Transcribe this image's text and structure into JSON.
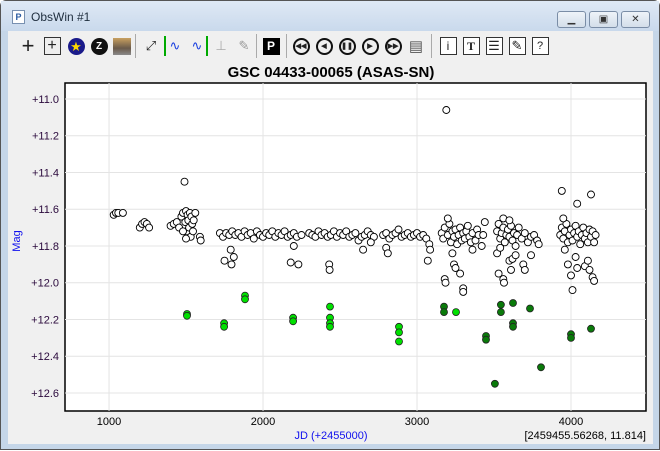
{
  "window": {
    "title": "ObsWin #1",
    "controls": [
      "minimize",
      "maximize",
      "close"
    ]
  },
  "toolbar": {
    "items": [
      "crosshair-icon",
      "box-crosshair-icon",
      "star-icon",
      "zoom-z-icon",
      "image-icon",
      "expand-icon",
      "period-left-icon",
      "period-right-icon",
      "period-gray-icon",
      "edit-gray-icon",
      "P",
      "rewind-icon",
      "prev-icon",
      "pause-icon",
      "play-icon",
      "fast-forward-icon",
      "notepad-icon",
      "i",
      "T",
      "list-icon",
      "pencil-icon",
      "?"
    ]
  },
  "status": {
    "cursor_readout": "[2459455.56268, 11.814]"
  },
  "chart_data": {
    "type": "scatter",
    "title": "GSC 04433-00065 (ASAS-SN)",
    "xlabel": "JD (+2455000)",
    "ylabel": "Mag",
    "xlim": [
      714,
      4487
    ],
    "ylim": [
      10.913,
      12.698
    ],
    "y_inverted": true,
    "grid": true,
    "xticks": [
      "1000",
      "2000",
      "3000",
      "4000"
    ],
    "yticks": [
      "+11.0",
      "+11.2",
      "+11.4",
      "+11.6",
      "+11.8",
      "+12.0",
      "+12.2",
      "+12.4",
      "+12.6"
    ],
    "series": [
      {
        "marker": "open-circle",
        "color": "#000000",
        "points": [
          [
            1030,
            11.63
          ],
          [
            1045,
            11.62
          ],
          [
            1060,
            11.62
          ],
          [
            1090,
            11.62
          ],
          [
            1200,
            11.7
          ],
          [
            1215,
            11.68
          ],
          [
            1230,
            11.67
          ],
          [
            1245,
            11.68
          ],
          [
            1260,
            11.7
          ],
          [
            1400,
            11.69
          ],
          [
            1420,
            11.68
          ],
          [
            1440,
            11.67
          ],
          [
            1455,
            11.7
          ],
          [
            1470,
            11.64
          ],
          [
            1480,
            11.62
          ],
          [
            1490,
            11.45
          ],
          [
            1495,
            11.67
          ],
          [
            1500,
            11.61
          ],
          [
            1505,
            11.72
          ],
          [
            1510,
            11.63
          ],
          [
            1515,
            11.66
          ],
          [
            1520,
            11.7
          ],
          [
            1525,
            11.62
          ],
          [
            1530,
            11.75
          ],
          [
            1535,
            11.64
          ],
          [
            1540,
            11.68
          ],
          [
            1545,
            11.72
          ],
          [
            1550,
            11.66
          ],
          [
            1560,
            11.62
          ],
          [
            1480,
            11.72
          ],
          [
            1500,
            11.76
          ],
          [
            1590,
            11.75
          ],
          [
            1595,
            11.77
          ],
          [
            1720,
            11.73
          ],
          [
            1740,
            11.75
          ],
          [
            1750,
            11.88
          ],
          [
            1760,
            11.73
          ],
          [
            1780,
            11.74
          ],
          [
            1790,
            11.82
          ],
          [
            1795,
            11.9
          ],
          [
            1800,
            11.72
          ],
          [
            1810,
            11.86
          ],
          [
            1820,
            11.74
          ],
          [
            1840,
            11.73
          ],
          [
            1860,
            11.75
          ],
          [
            1880,
            11.72
          ],
          [
            1900,
            11.74
          ],
          [
            1920,
            11.73
          ],
          [
            1940,
            11.76
          ],
          [
            1960,
            11.72
          ],
          [
            1980,
            11.74
          ],
          [
            2000,
            11.75
          ],
          [
            2020,
            11.73
          ],
          [
            2040,
            11.74
          ],
          [
            2060,
            11.72
          ],
          [
            2080,
            11.75
          ],
          [
            2100,
            11.73
          ],
          [
            2120,
            11.74
          ],
          [
            2140,
            11.72
          ],
          [
            2160,
            11.75
          ],
          [
            2180,
            11.74
          ],
          [
            2200,
            11.73
          ],
          [
            2220,
            11.75
          ],
          [
            2250,
            11.74
          ],
          [
            2180,
            11.89
          ],
          [
            2230,
            11.9
          ],
          [
            2200,
            11.8
          ],
          [
            2300,
            11.73
          ],
          [
            2320,
            11.74
          ],
          [
            2340,
            11.75
          ],
          [
            2360,
            11.72
          ],
          [
            2380,
            11.74
          ],
          [
            2400,
            11.73
          ],
          [
            2420,
            11.75
          ],
          [
            2430,
            11.9
          ],
          [
            2432,
            11.93
          ],
          [
            2440,
            11.74
          ],
          [
            2460,
            11.72
          ],
          [
            2480,
            11.75
          ],
          [
            2500,
            11.73
          ],
          [
            2520,
            11.74
          ],
          [
            2540,
            11.72
          ],
          [
            2560,
            11.75
          ],
          [
            2580,
            11.74
          ],
          [
            2600,
            11.73
          ],
          [
            2620,
            11.77
          ],
          [
            2640,
            11.75
          ],
          [
            2660,
            11.74
          ],
          [
            2680,
            11.72
          ],
          [
            2700,
            11.74
          ],
          [
            2720,
            11.75
          ],
          [
            2650,
            11.82
          ],
          [
            2700,
            11.78
          ],
          [
            2780,
            11.74
          ],
          [
            2800,
            11.73
          ],
          [
            2820,
            11.76
          ],
          [
            2840,
            11.74
          ],
          [
            2860,
            11.73
          ],
          [
            2880,
            11.71
          ],
          [
            2900,
            11.75
          ],
          [
            2920,
            11.74
          ],
          [
            2940,
            11.73
          ],
          [
            2960,
            11.75
          ],
          [
            2980,
            11.74
          ],
          [
            3000,
            11.73
          ],
          [
            3020,
            11.75
          ],
          [
            3040,
            11.74
          ],
          [
            3060,
            11.76
          ],
          [
            2800,
            11.81
          ],
          [
            2810,
            11.84
          ],
          [
            3080,
            11.79
          ],
          [
            3085,
            11.82
          ],
          [
            3070,
            11.88
          ],
          [
            3160,
            11.73
          ],
          [
            3170,
            11.76
          ],
          [
            3180,
            11.7
          ],
          [
            3190,
            11.06
          ],
          [
            3200,
            11.74
          ],
          [
            3210,
            11.68
          ],
          [
            3220,
            11.78
          ],
          [
            3230,
            11.72
          ],
          [
            3240,
            11.75
          ],
          [
            3250,
            11.71
          ],
          [
            3260,
            11.79
          ],
          [
            3270,
            11.74
          ],
          [
            3280,
            11.7
          ],
          [
            3290,
            11.77
          ],
          [
            3300,
            11.73
          ],
          [
            3310,
            11.76
          ],
          [
            3320,
            11.72
          ],
          [
            3330,
            11.69
          ],
          [
            3340,
            11.75
          ],
          [
            3350,
            11.78
          ],
          [
            3360,
            11.73
          ],
          [
            3380,
            11.77
          ],
          [
            3390,
            11.71
          ],
          [
            3400,
            11.74
          ],
          [
            3420,
            11.8
          ],
          [
            3430,
            11.74
          ],
          [
            3440,
            11.67
          ],
          [
            3180,
            11.98
          ],
          [
            3185,
            12.0
          ],
          [
            3240,
            11.9
          ],
          [
            3250,
            11.92
          ],
          [
            3280,
            11.95
          ],
          [
            3300,
            12.03
          ],
          [
            3300,
            12.05
          ],
          [
            3230,
            11.84
          ],
          [
            3200,
            11.65
          ],
          [
            3360,
            11.82
          ],
          [
            3520,
            11.72
          ],
          [
            3530,
            11.68
          ],
          [
            3540,
            11.76
          ],
          [
            3550,
            11.73
          ],
          [
            3560,
            11.7
          ],
          [
            3570,
            11.78
          ],
          [
            3580,
            11.74
          ],
          [
            3590,
            11.71
          ],
          [
            3600,
            11.75
          ],
          [
            3610,
            11.69
          ],
          [
            3620,
            11.77
          ],
          [
            3630,
            11.73
          ],
          [
            3640,
            11.8
          ],
          [
            3650,
            11.74
          ],
          [
            3660,
            11.7
          ],
          [
            3680,
            11.76
          ],
          [
            3700,
            11.73
          ],
          [
            3720,
            11.78
          ],
          [
            3740,
            11.75
          ],
          [
            3760,
            11.74
          ],
          [
            3780,
            11.77
          ],
          [
            3790,
            11.79
          ],
          [
            3560,
            11.65
          ],
          [
            3600,
            11.66
          ],
          [
            3520,
            11.84
          ],
          [
            3540,
            11.81
          ],
          [
            3600,
            11.88
          ],
          [
            3610,
            11.93
          ],
          [
            3620,
            11.87
          ],
          [
            3560,
            11.98
          ],
          [
            3565,
            12.0
          ],
          [
            3640,
            11.85
          ],
          [
            3690,
            11.9
          ],
          [
            3700,
            11.93
          ],
          [
            3740,
            11.85
          ],
          [
            3530,
            11.95
          ],
          [
            3930,
            11.74
          ],
          [
            3940,
            11.7
          ],
          [
            3950,
            11.76
          ],
          [
            3960,
            11.72
          ],
          [
            3970,
            11.68
          ],
          [
            3980,
            11.78
          ],
          [
            3990,
            11.74
          ],
          [
            4000,
            11.71
          ],
          [
            4010,
            11.77
          ],
          [
            4020,
            11.73
          ],
          [
            4030,
            11.69
          ],
          [
            4040,
            11.75
          ],
          [
            4050,
            11.72
          ],
          [
            4060,
            11.79
          ],
          [
            4070,
            11.74
          ],
          [
            4080,
            11.7
          ],
          [
            4090,
            11.76
          ],
          [
            4100,
            11.73
          ],
          [
            4110,
            11.78
          ],
          [
            4120,
            11.71
          ],
          [
            4130,
            11.75
          ],
          [
            4140,
            11.72
          ],
          [
            4150,
            11.78
          ],
          [
            4160,
            11.74
          ],
          [
            3940,
            11.5
          ],
          [
            4040,
            11.57
          ],
          [
            4130,
            11.52
          ],
          [
            3950,
            11.65
          ],
          [
            3960,
            11.82
          ],
          [
            3980,
            11.9
          ],
          [
            4000,
            11.96
          ],
          [
            4010,
            12.04
          ],
          [
            4030,
            11.86
          ],
          [
            4040,
            11.92
          ],
          [
            4090,
            11.91
          ],
          [
            4110,
            11.88
          ],
          [
            4120,
            11.93
          ],
          [
            4140,
            11.97
          ],
          [
            4150,
            11.99
          ]
        ]
      },
      {
        "marker": "filled-circle",
        "color": "#00e000",
        "points": [
          [
            1506,
            12.17
          ],
          [
            1506,
            12.18
          ],
          [
            1747,
            12.22
          ],
          [
            1747,
            12.24
          ],
          [
            1883,
            12.07
          ],
          [
            1883,
            12.09
          ],
          [
            2195,
            12.19
          ],
          [
            2195,
            12.21
          ],
          [
            2435,
            12.13
          ],
          [
            2435,
            12.19
          ],
          [
            2435,
            12.22
          ],
          [
            2435,
            12.24
          ],
          [
            2883,
            12.24
          ],
          [
            2883,
            12.27
          ],
          [
            2883,
            12.32
          ],
          [
            3253,
            12.16
          ]
        ]
      },
      {
        "marker": "filled-circle",
        "color": "#0a7a0a",
        "points": [
          [
            3175,
            12.13
          ],
          [
            3175,
            12.16
          ],
          [
            3545,
            12.12
          ],
          [
            3545,
            12.16
          ],
          [
            3623,
            12.11
          ],
          [
            3734,
            12.14
          ],
          [
            3448,
            12.29
          ],
          [
            3448,
            12.31
          ],
          [
            3623,
            12.22
          ],
          [
            3623,
            12.24
          ],
          [
            4000,
            12.28
          ],
          [
            4000,
            12.3
          ],
          [
            4130,
            12.25
          ],
          [
            3805,
            12.46
          ],
          [
            3506,
            12.55
          ]
        ]
      }
    ]
  }
}
